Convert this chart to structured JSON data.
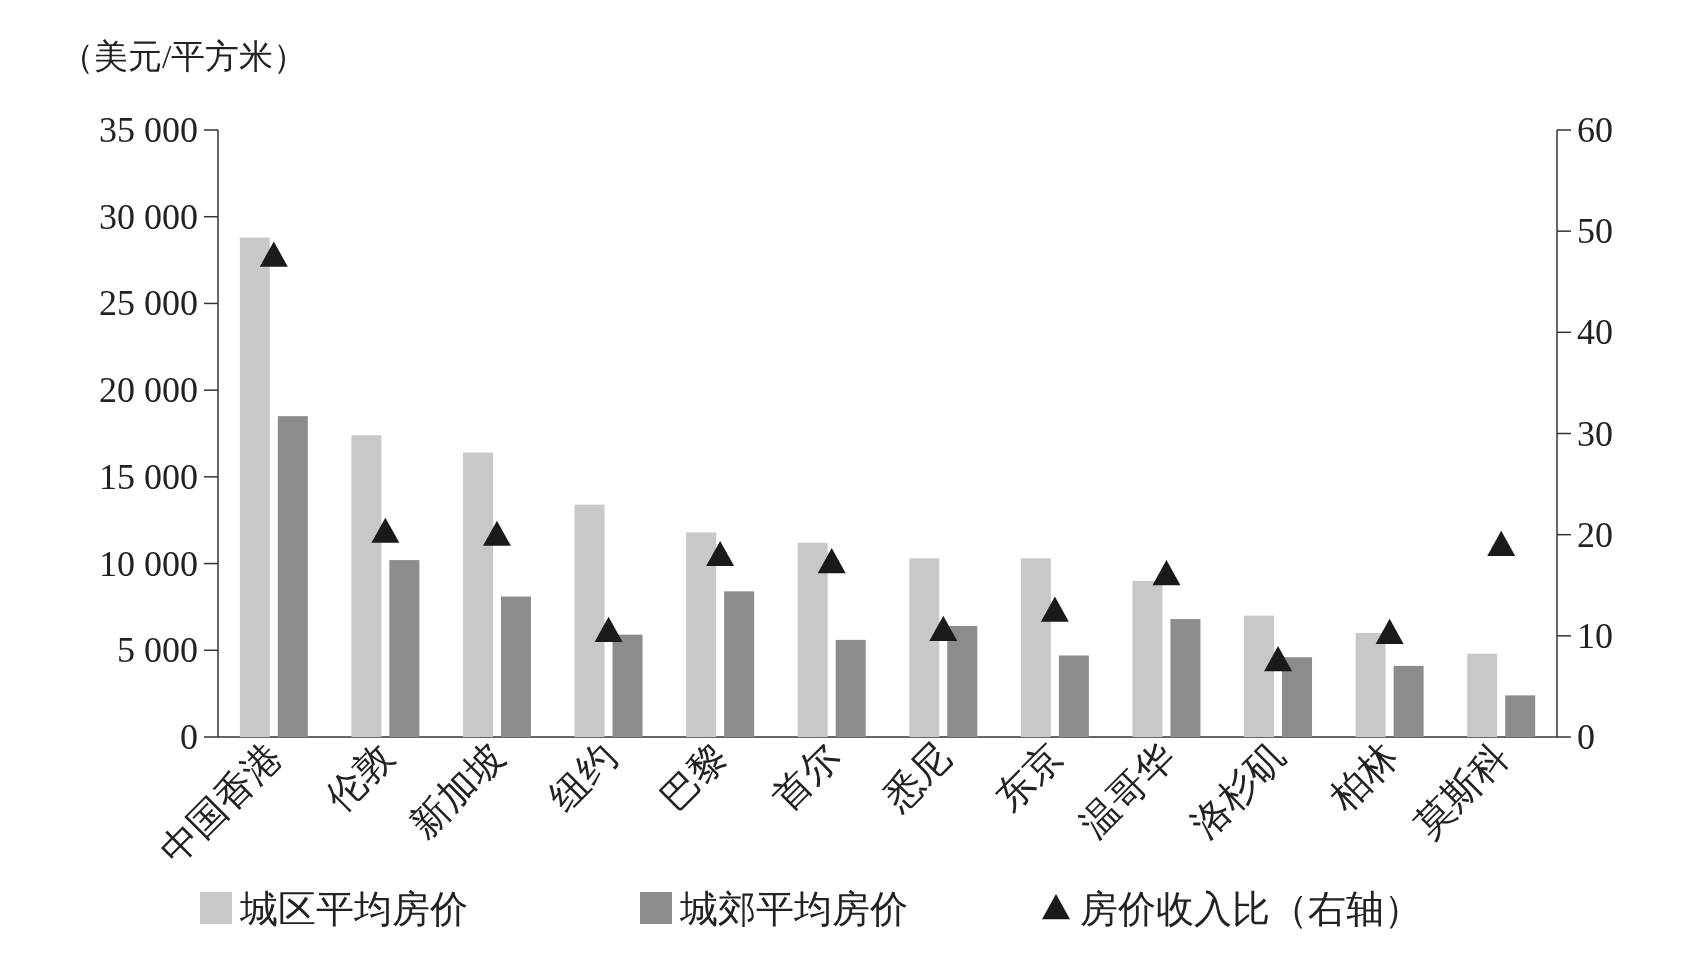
{
  "chart_data": {
    "type": "bar",
    "ylabel": "（美元/平方米）",
    "categories": [
      "中国香港",
      "伦敦",
      "新加坡",
      "纽约",
      "巴黎",
      "首尔",
      "悉尼",
      "东京",
      "温哥华",
      "洛杉矶",
      "柏林",
      "莫斯科"
    ],
    "series": [
      {
        "name": "城区平均房价",
        "color": "#c8c8c8",
        "values": [
          28800,
          17400,
          16400,
          13400,
          11800,
          11200,
          10300,
          10300,
          9000,
          7000,
          6000,
          4800
        ]
      },
      {
        "name": "城郊平均房价",
        "color": "#8c8c8c",
        "values": [
          18500,
          10200,
          8100,
          5900,
          8400,
          5600,
          6400,
          4700,
          6800,
          4600,
          4100,
          2400
        ]
      },
      {
        "name": "房价收入比（右轴）",
        "type": "scatter",
        "axis": "y2",
        "marker": "triangle",
        "color": "#1a1a1a",
        "values": [
          47.6,
          20.3,
          20.0,
          10.5,
          18.0,
          17.3,
          10.6,
          12.5,
          16.1,
          7.6,
          10.3,
          19.0
        ]
      }
    ],
    "ylim": [
      0,
      35000
    ],
    "yticks": [
      {
        "value": 0,
        "label": "0"
      },
      {
        "value": 5000,
        "label": "5 000"
      },
      {
        "value": 10000,
        "label": "10 000"
      },
      {
        "value": 15000,
        "label": "15 000"
      },
      {
        "value": 20000,
        "label": "20 000"
      },
      {
        "value": 25000,
        "label": "25 000"
      },
      {
        "value": 30000,
        "label": "30 000"
      },
      {
        "value": 35000,
        "label": "35 000"
      }
    ],
    "y2lim": [
      0,
      60
    ],
    "y2ticks": [
      0,
      10,
      20,
      30,
      40,
      50,
      60
    ],
    "grid": false,
    "legend": "bottom"
  }
}
